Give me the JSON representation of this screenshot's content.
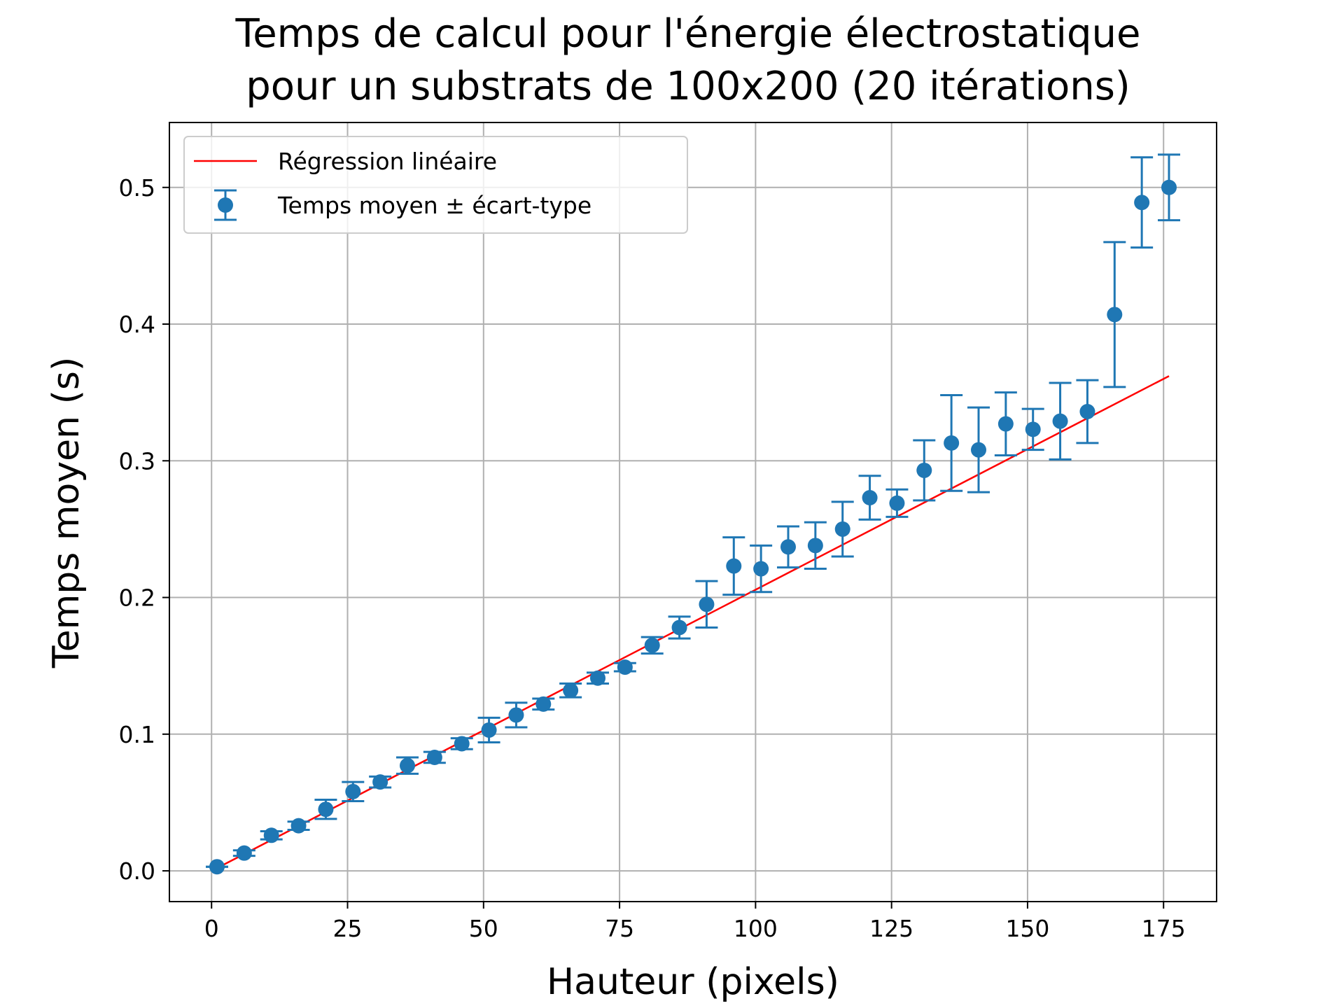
{
  "chart_data": {
    "type": "scatter",
    "title_lines": [
      "Temps de calcul pour l'énergie électrostatique",
      "pour un substrats de 100x200 (20 itérations)"
    ],
    "xlabel": "Hauteur (pixels)",
    "ylabel": "Temps moyen (s)",
    "xlim": [
      -7.75,
      184.75
    ],
    "ylim": [
      -0.0225,
      0.5475
    ],
    "xticks": [
      0,
      25,
      50,
      75,
      100,
      125,
      150,
      175
    ],
    "xtick_labels": [
      "0",
      "25",
      "50",
      "75",
      "100",
      "125",
      "150",
      "175"
    ],
    "yticks": [
      0.0,
      0.1,
      0.2,
      0.3,
      0.4,
      0.5
    ],
    "ytick_labels": [
      "0.0",
      "0.1",
      "0.2",
      "0.3",
      "0.4",
      "0.5"
    ],
    "grid": true,
    "legend_position": "upper-left",
    "series": [
      {
        "name": "Temps moyen ± écart-type",
        "kind": "errorbar",
        "color": "#1f77b4",
        "x": [
          1,
          6,
          11,
          16,
          21,
          26,
          31,
          36,
          41,
          46,
          51,
          56,
          61,
          66,
          71,
          76,
          81,
          86,
          91,
          96,
          101,
          106,
          111,
          116,
          121,
          126,
          131,
          136,
          141,
          146,
          151,
          156,
          161,
          166,
          171,
          176
        ],
        "y": [
          0.003,
          0.013,
          0.026,
          0.033,
          0.045,
          0.058,
          0.065,
          0.077,
          0.083,
          0.093,
          0.103,
          0.114,
          0.122,
          0.132,
          0.141,
          0.149,
          0.165,
          0.178,
          0.195,
          0.223,
          0.221,
          0.237,
          0.238,
          0.25,
          0.273,
          0.269,
          0.293,
          0.313,
          0.308,
          0.327,
          0.323,
          0.329,
          0.336,
          0.407,
          0.489,
          0.5
        ],
        "err": [
          0.0,
          0.002,
          0.003,
          0.003,
          0.007,
          0.007,
          0.004,
          0.006,
          0.004,
          0.004,
          0.009,
          0.009,
          0.004,
          0.005,
          0.004,
          0.003,
          0.006,
          0.008,
          0.017,
          0.021,
          0.017,
          0.015,
          0.017,
          0.02,
          0.016,
          0.01,
          0.022,
          0.035,
          0.031,
          0.023,
          0.015,
          0.028,
          0.023,
          0.053,
          0.033,
          0.024
        ]
      },
      {
        "name": "Régression linéaire",
        "kind": "line",
        "color": "#ff0000",
        "x": [
          1,
          176
        ],
        "y": [
          0.002,
          0.362
        ]
      }
    ]
  }
}
